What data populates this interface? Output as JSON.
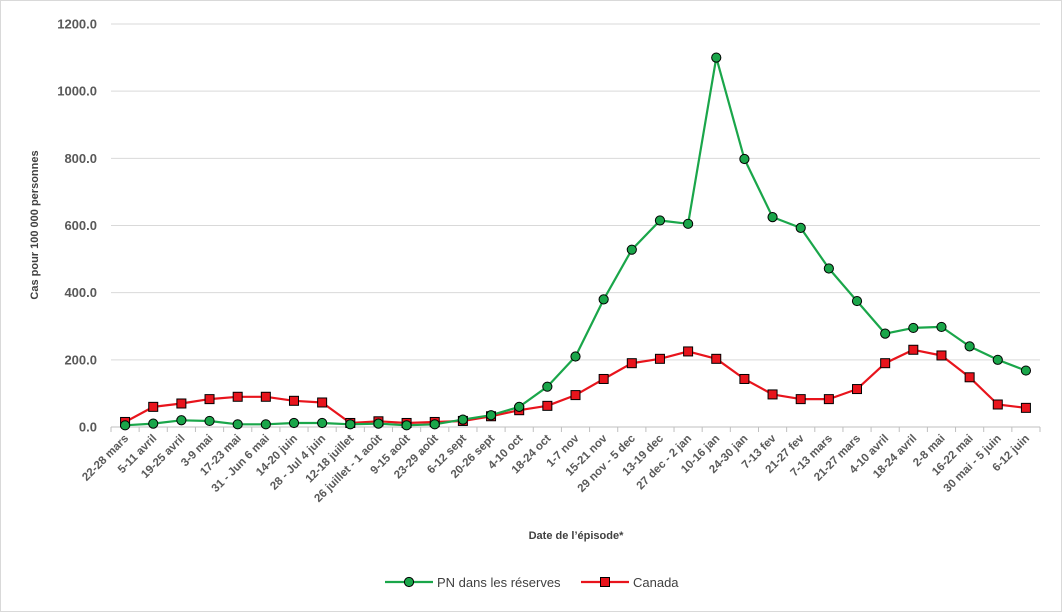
{
  "chart_data": {
    "type": "line",
    "title": "",
    "xlabel": "Date de l’épisode*",
    "ylabel": "Cas pour 100 000 personnes",
    "ylim": [
      0,
      1200
    ],
    "yticks": [
      "0.0",
      "200.0",
      "400.0",
      "600.0",
      "800.0",
      "1000.0",
      "1200.0"
    ],
    "grid": true,
    "legend_position": "bottom",
    "categories": [
      "22-28 mars",
      "5-11 avril",
      "19-25 avril",
      "3-9 mai",
      "17-23 mai",
      "31 - Jun 6 mai",
      "14-20 juin",
      "28 - Jul 4 juin",
      "12-18 juillet",
      "26 juillet - 1 août",
      "9-15 août",
      "23-29 août",
      "6-12 sept",
      "20-26 sept",
      "4-10 oct",
      "18-24 oct",
      "1-7 nov",
      "15-21 nov",
      "29 nov - 5 dec",
      "13-19 dec",
      "27 dec - 2 jan",
      "10-16 jan",
      "24-30 jan",
      "7-13 fev",
      "21-27 fev",
      "7-13 mars",
      "21-27 mars",
      "4-10 avril",
      "18-24 avril",
      "2-8 mai",
      "16-22 mai",
      "30 mai - 5 juin",
      "6-12 juin"
    ],
    "series": [
      {
        "name": "PN dans les réserves",
        "color": "#1aa64a",
        "marker": "circle",
        "values": [
          5,
          10,
          20,
          18,
          8,
          8,
          12,
          12,
          8,
          10,
          5,
          8,
          22,
          35,
          60,
          120,
          210,
          380,
          528,
          615,
          605,
          1100,
          798,
          625,
          593,
          472,
          375,
          278,
          295,
          298,
          240,
          200,
          168
        ]
      },
      {
        "name": "Canada",
        "color": "#e8141c",
        "marker": "square",
        "values": [
          15,
          60,
          70,
          83,
          90,
          90,
          78,
          73,
          12,
          17,
          12,
          15,
          18,
          32,
          50,
          63,
          95,
          143,
          190,
          203,
          225,
          203,
          143,
          97,
          83,
          83,
          113,
          190,
          230,
          213,
          148,
          67,
          57
        ]
      }
    ]
  }
}
